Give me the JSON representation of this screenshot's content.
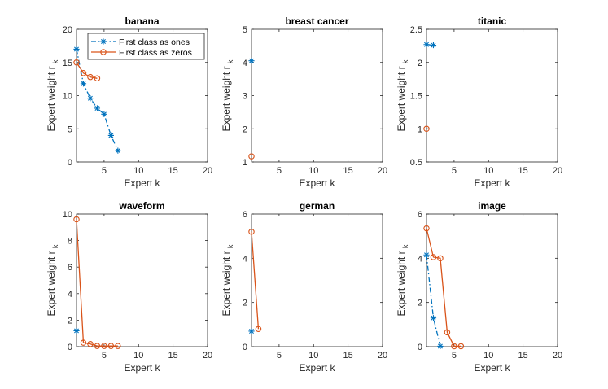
{
  "legend": {
    "ones_label": "First class as ones",
    "zeros_label": "First class as zeros"
  },
  "colors": {
    "ones": "#0072BD",
    "zeros": "#D95319"
  },
  "chart_data": [
    {
      "type": "line",
      "title": "banana",
      "xlabel": "Expert k",
      "ylabel": "Expert weight r",
      "ylabel_sub": "k",
      "xlim": [
        1,
        20
      ],
      "ylim": [
        0,
        20
      ],
      "xticks": [
        5,
        10,
        15,
        20
      ],
      "yticks": [
        0,
        5,
        10,
        15,
        20
      ],
      "xticklabels": [
        "5",
        "10",
        "15",
        "20"
      ],
      "yticklabels": [
        "0",
        "5",
        "10",
        "15",
        "20"
      ],
      "legend": "top-right",
      "series": [
        {
          "name": "First class as ones",
          "x": [
            1,
            2,
            3,
            4,
            5,
            6,
            7
          ],
          "y": [
            17,
            11.8,
            9.6,
            8.1,
            7.2,
            4,
            1.7
          ]
        },
        {
          "name": "First class as zeros",
          "x": [
            1,
            2,
            3,
            4
          ],
          "y": [
            15,
            13.4,
            12.8,
            12.6
          ]
        }
      ]
    },
    {
      "type": "line",
      "title": "breast cancer",
      "xlabel": "Expert k",
      "ylabel": "Expert weight r",
      "ylabel_sub": "k",
      "xlim": [
        1,
        20
      ],
      "ylim": [
        1,
        5
      ],
      "xticks": [
        5,
        10,
        15,
        20
      ],
      "yticks": [
        1,
        2,
        3,
        4,
        5
      ],
      "xticklabels": [
        "5",
        "10",
        "15",
        "20"
      ],
      "yticklabels": [
        "1",
        "2",
        "3",
        "4",
        "5"
      ],
      "series": [
        {
          "name": "First class as ones",
          "x": [
            1
          ],
          "y": [
            4.05
          ]
        },
        {
          "name": "First class as zeros",
          "x": [
            1
          ],
          "y": [
            1.17
          ]
        }
      ]
    },
    {
      "type": "line",
      "title": "titanic",
      "xlabel": "Expert k",
      "ylabel": "Expert weight r",
      "ylabel_sub": "k",
      "xlim": [
        1,
        20
      ],
      "ylim": [
        0.5,
        2.5
      ],
      "xticks": [
        5,
        10,
        15,
        20
      ],
      "yticks": [
        0.5,
        1,
        1.5,
        2,
        2.5
      ],
      "xticklabels": [
        "5",
        "10",
        "15",
        "20"
      ],
      "yticklabels": [
        "0.5",
        "1",
        "1.5",
        "2",
        "2.5"
      ],
      "series": [
        {
          "name": "First class as ones",
          "x": [
            1,
            2
          ],
          "y": [
            2.27,
            2.26
          ]
        },
        {
          "name": "First class as zeros",
          "x": [
            1
          ],
          "y": [
            1.0
          ]
        }
      ]
    },
    {
      "type": "line",
      "title": "waveform",
      "xlabel": "Expert k",
      "ylabel": "Expert weight r",
      "ylabel_sub": "k",
      "xlim": [
        1,
        20
      ],
      "ylim": [
        0,
        10
      ],
      "xticks": [
        5,
        10,
        15,
        20
      ],
      "yticks": [
        0,
        2,
        4,
        6,
        8,
        10
      ],
      "xticklabels": [
        "5",
        "10",
        "15",
        "20"
      ],
      "yticklabels": [
        "0",
        "2",
        "4",
        "6",
        "8",
        "10"
      ],
      "series": [
        {
          "name": "First class as ones",
          "x": [
            1
          ],
          "y": [
            1.2
          ]
        },
        {
          "name": "First class as zeros",
          "x": [
            1,
            2,
            3,
            4,
            5,
            6,
            7
          ],
          "y": [
            9.6,
            0.3,
            0.2,
            0.05,
            0.05,
            0.05,
            0.05
          ]
        }
      ]
    },
    {
      "type": "line",
      "title": "german",
      "xlabel": "Expert k",
      "ylabel": "Expert weight r",
      "ylabel_sub": "k",
      "xlim": [
        1,
        20
      ],
      "ylim": [
        0,
        6
      ],
      "xticks": [
        5,
        10,
        15,
        20
      ],
      "yticks": [
        0,
        2,
        4,
        6
      ],
      "xticklabels": [
        "5",
        "10",
        "15",
        "20"
      ],
      "yticklabels": [
        "0",
        "2",
        "4",
        "6"
      ],
      "series": [
        {
          "name": "First class as ones",
          "x": [
            1
          ],
          "y": [
            0.7
          ]
        },
        {
          "name": "First class as zeros",
          "x": [
            1,
            2
          ],
          "y": [
            5.2,
            0.8
          ]
        }
      ]
    },
    {
      "type": "line",
      "title": "image",
      "xlabel": "Expert k",
      "ylabel": "Expert weight r",
      "ylabel_sub": "k",
      "xlim": [
        1,
        20
      ],
      "ylim": [
        0,
        6
      ],
      "xticks": [
        5,
        10,
        15,
        20
      ],
      "yticks": [
        0,
        2,
        4,
        6
      ],
      "xticklabels": [
        "5",
        "10",
        "15",
        "20"
      ],
      "yticklabels": [
        "0",
        "2",
        "4",
        "6"
      ],
      "series": [
        {
          "name": "First class as ones",
          "x": [
            1,
            2,
            3
          ],
          "y": [
            4.15,
            1.3,
            0.02
          ]
        },
        {
          "name": "First class as zeros",
          "x": [
            1,
            2,
            3,
            4,
            5,
            6
          ],
          "y": [
            5.35,
            4.05,
            4.0,
            0.65,
            0.02,
            0.02
          ]
        }
      ]
    }
  ]
}
